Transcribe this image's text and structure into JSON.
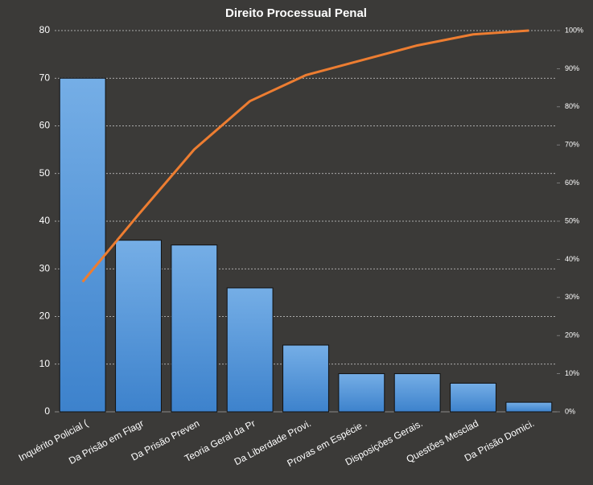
{
  "chart_data": {
    "type": "bar",
    "title": "Direito Processual Penal",
    "categories": [
      "Inquérito Policial (",
      "Da Prisão em Flagr",
      "Da Prisão Preven",
      "Teoria Geral da Pr",
      "Da Liberdade Provi.",
      "Provas em Espécie  .",
      "Disposições Gerais.",
      "Questões Mesclad",
      "Da Prisão Domici."
    ],
    "series": [
      {
        "type": "bar",
        "color": "#4a90d9",
        "values": [
          70,
          36,
          35,
          26,
          14,
          8,
          8,
          6,
          2
        ]
      },
      {
        "type": "line",
        "axis": "y2",
        "color": "#ed7d31",
        "values": [
          34.1,
          51.7,
          68.8,
          81.5,
          88.3,
          92.2,
          96.1,
          99.0,
          100
        ]
      }
    ],
    "ylim": [
      0,
      80
    ],
    "yticks": [
      0,
      10,
      20,
      30,
      40,
      50,
      60,
      70,
      80
    ],
    "y2lim": [
      0,
      100
    ],
    "y2ticks": [
      {
        "value": 0,
        "label": "0%"
      },
      {
        "value": 10,
        "label": "10%"
      },
      {
        "value": 20,
        "label": "20%"
      },
      {
        "value": 30,
        "label": "30%"
      },
      {
        "value": 40,
        "label": "40%"
      },
      {
        "value": 50,
        "label": "50%"
      },
      {
        "value": 60,
        "label": "60%"
      },
      {
        "value": 70,
        "label": "70%"
      },
      {
        "value": 80,
        "label": "80%"
      },
      {
        "value": 90,
        "label": "90%"
      },
      {
        "value": 100,
        "label": "100%"
      }
    ],
    "grid": true
  }
}
